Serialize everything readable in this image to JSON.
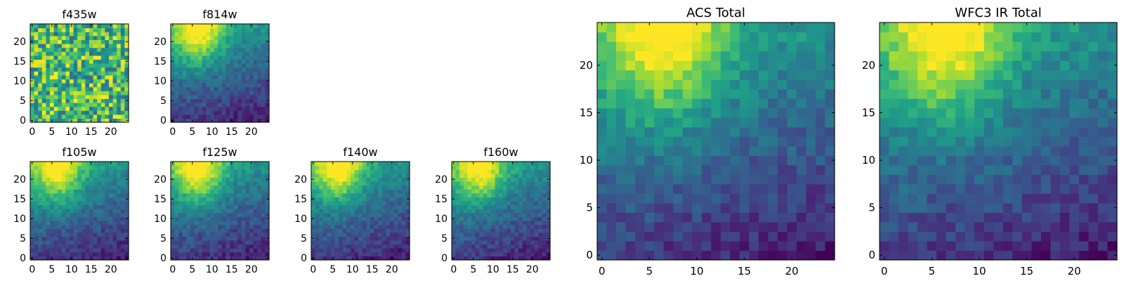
{
  "chart_data": [
    {
      "type": "heatmap",
      "title": "f435w",
      "x_ticks": [
        "0",
        "5",
        "10",
        "15",
        "20"
      ],
      "y_ticks": [
        "0",
        "5",
        "10",
        "15",
        "20"
      ],
      "grid_size": [
        25,
        25
      ],
      "colormap": "viridis",
      "pattern": "noise"
    },
    {
      "type": "heatmap",
      "title": "f814w",
      "x_ticks": [
        "0",
        "5",
        "10",
        "15",
        "20"
      ],
      "y_ticks": [
        "0",
        "5",
        "10",
        "15",
        "20"
      ],
      "grid_size": [
        25,
        25
      ],
      "colormap": "viridis",
      "pattern": "peak-top-left"
    },
    {
      "type": "heatmap",
      "title": "f105w",
      "x_ticks": [
        "0",
        "5",
        "10",
        "15",
        "20"
      ],
      "y_ticks": [
        "0",
        "5",
        "10",
        "15",
        "20"
      ],
      "grid_size": [
        25,
        25
      ],
      "colormap": "viridis",
      "pattern": "peak-top-left"
    },
    {
      "type": "heatmap",
      "title": "f125w",
      "x_ticks": [
        "0",
        "5",
        "10",
        "15",
        "20"
      ],
      "y_ticks": [
        "0",
        "5",
        "10",
        "15",
        "20"
      ],
      "grid_size": [
        25,
        25
      ],
      "colormap": "viridis",
      "pattern": "peak-top-left"
    },
    {
      "type": "heatmap",
      "title": "f140w",
      "x_ticks": [
        "0",
        "5",
        "10",
        "15",
        "20"
      ],
      "y_ticks": [
        "0",
        "5",
        "10",
        "15",
        "20"
      ],
      "grid_size": [
        25,
        25
      ],
      "colormap": "viridis",
      "pattern": "peak-top-left"
    },
    {
      "type": "heatmap",
      "title": "f160w",
      "x_ticks": [
        "0",
        "5",
        "10",
        "15",
        "20"
      ],
      "y_ticks": [
        "0",
        "5",
        "10",
        "15",
        "20"
      ],
      "grid_size": [
        25,
        25
      ],
      "colormap": "viridis",
      "pattern": "peak-top-left"
    },
    {
      "type": "heatmap",
      "title": "ACS Total",
      "x_ticks": [
        "0",
        "5",
        "10",
        "15",
        "20"
      ],
      "y_ticks": [
        "0",
        "5",
        "10",
        "15",
        "20"
      ],
      "grid_size": [
        25,
        25
      ],
      "colormap": "viridis",
      "pattern": "peak-top-left"
    },
    {
      "type": "heatmap",
      "title": "WFC3 IR Total",
      "x_ticks": [
        "0",
        "5",
        "10",
        "15",
        "20"
      ],
      "y_ticks": [
        "0",
        "5",
        "10",
        "15",
        "20"
      ],
      "grid_size": [
        25,
        25
      ],
      "colormap": "viridis",
      "pattern": "peak-top-left"
    }
  ]
}
